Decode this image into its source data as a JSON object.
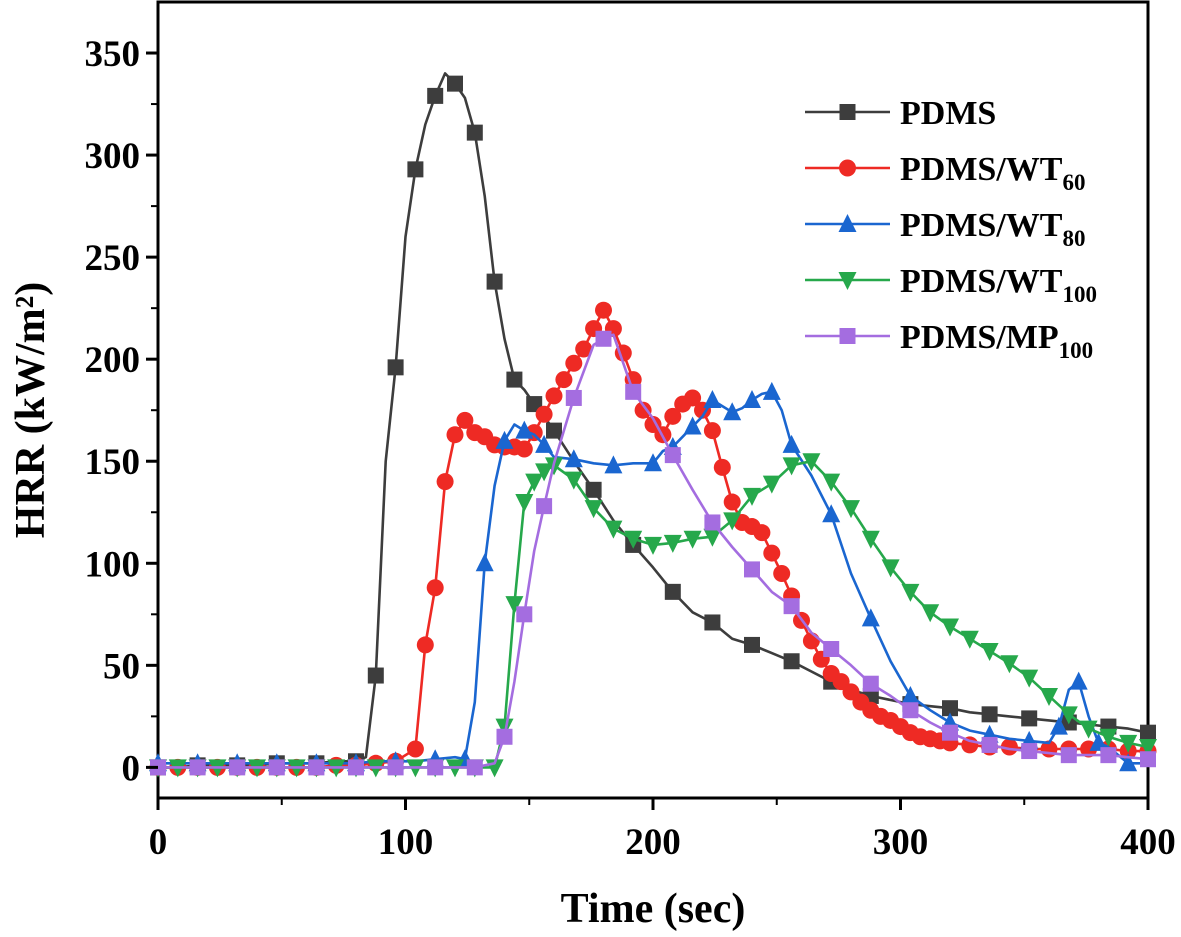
{
  "chart_data": {
    "type": "line",
    "title": "",
    "xlabel": "Time (sec)",
    "ylabel": "HRR (kW/m²)",
    "xlim": [
      0,
      400
    ],
    "ylim": [
      -15,
      375
    ],
    "xticks": [
      "0",
      "100",
      "200",
      "300",
      "400"
    ],
    "yticks": [
      "0",
      "50",
      "100",
      "150",
      "200",
      "250",
      "300",
      "350"
    ],
    "legend_position": "top-right",
    "series": [
      {
        "name": "PDMS",
        "legend_main": "PDMS",
        "legend_sub": "",
        "color": "#3d3d3d",
        "marker": "square",
        "x": [
          0,
          8,
          16,
          24,
          32,
          40,
          48,
          56,
          64,
          72,
          80,
          84,
          88,
          92,
          96,
          100,
          104,
          108,
          112,
          116,
          120,
          124,
          128,
          132,
          136,
          140,
          144,
          148,
          152,
          156,
          160,
          168,
          176,
          184,
          192,
          200,
          208,
          216,
          224,
          232,
          240,
          248,
          256,
          264,
          272,
          280,
          288,
          296,
          304,
          312,
          320,
          328,
          336,
          344,
          352,
          360,
          368,
          376,
          384,
          392,
          400
        ],
        "values": [
          0,
          0,
          1,
          1,
          1,
          1,
          2,
          2,
          2,
          3,
          3,
          5,
          45,
          150,
          196,
          260,
          293,
          315,
          329,
          340,
          335,
          328,
          311,
          280,
          238,
          210,
          190,
          185,
          178,
          172,
          165,
          150,
          136,
          121,
          109,
          98,
          86,
          76,
          71,
          63,
          60,
          56,
          52,
          47,
          42,
          38,
          35,
          33,
          31,
          30,
          29,
          27,
          26,
          25,
          24,
          23,
          22,
          21,
          20,
          19,
          17
        ],
        "marker_every": 2
      },
      {
        "name": "PDMS/WT60",
        "legend_main": "PDMS/WT",
        "legend_sub": "60",
        "color": "#ee2a24",
        "marker": "circle",
        "x": [
          0,
          8,
          16,
          24,
          32,
          40,
          48,
          56,
          64,
          72,
          80,
          88,
          96,
          104,
          108,
          112,
          116,
          120,
          124,
          128,
          132,
          136,
          140,
          144,
          148,
          152,
          156,
          160,
          164,
          168,
          172,
          176,
          180,
          184,
          188,
          192,
          196,
          200,
          204,
          208,
          212,
          216,
          220,
          224,
          228,
          232,
          236,
          240,
          244,
          248,
          252,
          256,
          260,
          264,
          268,
          272,
          276,
          280,
          284,
          288,
          292,
          296,
          300,
          304,
          308,
          312,
          316,
          320,
          328,
          336,
          344,
          352,
          360,
          368,
          376,
          384,
          392,
          400
        ],
        "values": [
          0,
          0,
          0,
          0,
          0,
          0,
          0,
          0,
          0,
          1,
          1,
          2,
          3,
          9,
          60,
          88,
          140,
          163,
          170,
          164,
          162,
          158,
          157,
          157,
          156,
          164,
          173,
          182,
          190,
          198,
          205,
          215,
          224,
          215,
          203,
          190,
          175,
          168,
          163,
          172,
          178,
          181,
          175,
          165,
          147,
          130,
          120,
          118,
          115,
          105,
          95,
          84,
          72,
          62,
          53,
          46,
          42,
          37,
          32,
          28,
          25,
          23,
          20,
          17,
          15,
          14,
          13,
          12,
          11,
          10,
          10,
          9,
          9,
          9,
          9,
          9,
          8,
          8
        ],
        "marker_every": 1
      },
      {
        "name": "PDMS/WT80",
        "legend_main": "PDMS/WT",
        "legend_sub": "80",
        "color": "#1a66d0",
        "marker": "triangle-up",
        "x": [
          0,
          8,
          16,
          24,
          32,
          40,
          48,
          56,
          64,
          72,
          80,
          88,
          96,
          104,
          112,
          120,
          124,
          128,
          132,
          136,
          140,
          144,
          148,
          152,
          156,
          160,
          168,
          176,
          184,
          192,
          200,
          204,
          208,
          212,
          216,
          220,
          224,
          228,
          232,
          236,
          240,
          244,
          248,
          252,
          256,
          264,
          272,
          280,
          288,
          296,
          304,
          312,
          320,
          328,
          336,
          344,
          352,
          360,
          364,
          368,
          372,
          376,
          380,
          384,
          392,
          400
        ],
        "values": [
          2,
          2,
          2,
          2,
          2,
          2,
          2,
          2,
          2,
          2,
          2,
          3,
          3,
          3,
          4,
          5,
          4,
          32,
          100,
          138,
          160,
          168,
          165,
          163,
          158,
          152,
          151,
          149,
          148,
          149,
          149,
          155,
          157,
          162,
          167,
          172,
          180,
          177,
          174,
          176,
          180,
          183,
          184,
          175,
          158,
          143,
          124,
          95,
          73,
          52,
          35,
          28,
          22,
          18,
          16,
          14,
          13,
          12,
          20,
          38,
          42,
          25,
          12,
          10,
          2,
          2
        ],
        "marker_every": 2
      },
      {
        "name": "PDMS/WT100",
        "legend_main": "PDMS/WT",
        "legend_sub": "100",
        "color": "#26a84b",
        "marker": "triangle-down",
        "x": [
          0,
          8,
          16,
          24,
          32,
          40,
          48,
          56,
          64,
          72,
          80,
          88,
          96,
          104,
          112,
          120,
          128,
          136,
          140,
          144,
          148,
          152,
          156,
          160,
          168,
          176,
          184,
          192,
          200,
          208,
          216,
          224,
          232,
          240,
          248,
          256,
          264,
          272,
          280,
          288,
          296,
          304,
          312,
          320,
          328,
          336,
          344,
          352,
          360,
          368,
          376,
          384,
          392,
          400
        ],
        "values": [
          0,
          0,
          0,
          0,
          0,
          0,
          0,
          0,
          0,
          0,
          0,
          0,
          0,
          0,
          0,
          0,
          0,
          0,
          20,
          80,
          130,
          140,
          145,
          148,
          141,
          127,
          117,
          112,
          109,
          110,
          112,
          113,
          121,
          133,
          139,
          148,
          150,
          140,
          127,
          112,
          98,
          86,
          76,
          69,
          63,
          57,
          51,
          44,
          35,
          26,
          19,
          15,
          12,
          10
        ],
        "marker_every": 1
      },
      {
        "name": "PDMS/MP100",
        "legend_main": "PDMS/MP",
        "legend_sub": "100",
        "color": "#a46de0",
        "marker": "square",
        "x": [
          0,
          8,
          16,
          24,
          32,
          40,
          48,
          56,
          64,
          72,
          80,
          88,
          96,
          104,
          112,
          120,
          128,
          136,
          140,
          144,
          148,
          152,
          156,
          160,
          168,
          176,
          180,
          184,
          192,
          200,
          208,
          216,
          224,
          232,
          240,
          248,
          256,
          264,
          272,
          280,
          288,
          296,
          304,
          312,
          320,
          328,
          336,
          344,
          352,
          360,
          368,
          376,
          384,
          392,
          400
        ],
        "values": [
          0,
          0,
          0,
          0,
          0,
          0,
          0,
          0,
          0,
          0,
          0,
          0,
          0,
          0,
          0,
          0,
          0,
          2,
          15,
          42,
          75,
          106,
          128,
          149,
          181,
          207,
          210,
          212,
          184,
          171,
          153,
          136,
          120,
          108,
          97,
          86,
          79,
          66,
          58,
          50,
          41,
          35,
          28,
          22,
          17,
          13,
          11,
          9,
          8,
          7,
          6,
          6,
          6,
          5,
          4
        ],
        "marker_every": 2
      }
    ]
  }
}
